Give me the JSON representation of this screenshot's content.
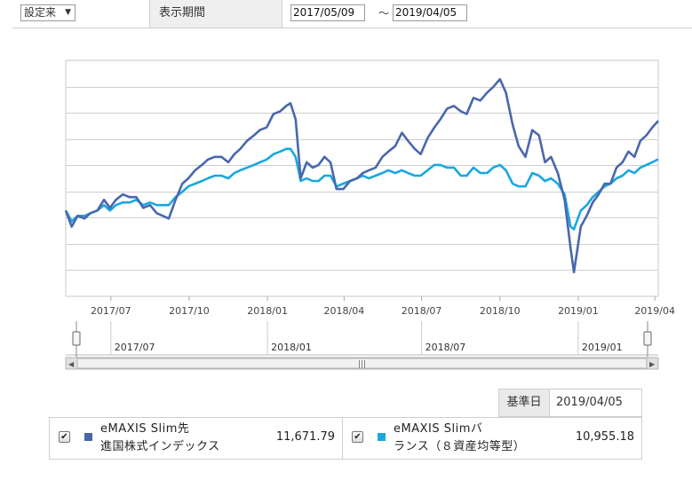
{
  "controls": {
    "period_select": "設定来",
    "period_label": "表示期間",
    "date_from": "2017/05/09",
    "tilde": "～",
    "date_to": "2019/04/05"
  },
  "chart_data": {
    "type": "line",
    "x_start": "2017/05/09",
    "x_end": "2019/04/05",
    "ylim": [
      8400,
      12800
    ],
    "grid": true,
    "x_tick_labels": [
      "2017/07",
      "2017/10",
      "2018/01",
      "2018/04",
      "2018/07",
      "2018/10",
      "2019/01",
      "2019/04"
    ],
    "series": [
      {
        "name": "eMAXIS Slim先進国株式インデックス",
        "color": "#4a67ad",
        "points": [
          [
            "2017-05-09",
            10000
          ],
          [
            "2017-05-16",
            9700
          ],
          [
            "2017-05-23",
            9900
          ],
          [
            "2017-05-31",
            9850
          ],
          [
            "2017-06-07",
            9950
          ],
          [
            "2017-06-15",
            10000
          ],
          [
            "2017-06-23",
            10200
          ],
          [
            "2017-06-30",
            10050
          ],
          [
            "2017-07-07",
            10200
          ],
          [
            "2017-07-15",
            10300
          ],
          [
            "2017-07-23",
            10250
          ],
          [
            "2017-07-31",
            10250
          ],
          [
            "2017-08-08",
            10050
          ],
          [
            "2017-08-16",
            10100
          ],
          [
            "2017-08-24",
            9950
          ],
          [
            "2017-08-31",
            9900
          ],
          [
            "2017-09-07",
            9850
          ],
          [
            "2017-09-15",
            10200
          ],
          [
            "2017-09-23",
            10500
          ],
          [
            "2017-09-30",
            10600
          ],
          [
            "2017-10-08",
            10750
          ],
          [
            "2017-10-16",
            10850
          ],
          [
            "2017-10-23",
            10950
          ],
          [
            "2017-10-31",
            11000
          ],
          [
            "2017-11-08",
            11000
          ],
          [
            "2017-11-16",
            10900
          ],
          [
            "2017-11-23",
            11050
          ],
          [
            "2017-11-30",
            11150
          ],
          [
            "2017-12-08",
            11300
          ],
          [
            "2017-12-16",
            11400
          ],
          [
            "2017-12-23",
            11500
          ],
          [
            "2017-12-31",
            11550
          ],
          [
            "2018-01-08",
            11800
          ],
          [
            "2018-01-16",
            11850
          ],
          [
            "2018-01-23",
            11950
          ],
          [
            "2018-01-28",
            12000
          ],
          [
            "2018-02-03",
            11700
          ],
          [
            "2018-02-09",
            10600
          ],
          [
            "2018-02-16",
            10900
          ],
          [
            "2018-02-23",
            10800
          ],
          [
            "2018-03-02",
            10850
          ],
          [
            "2018-03-09",
            11000
          ],
          [
            "2018-03-16",
            10900
          ],
          [
            "2018-03-23",
            10400
          ],
          [
            "2018-03-31",
            10400
          ],
          [
            "2018-04-08",
            10550
          ],
          [
            "2018-04-16",
            10600
          ],
          [
            "2018-04-23",
            10700
          ],
          [
            "2018-04-30",
            10750
          ],
          [
            "2018-05-08",
            10800
          ],
          [
            "2018-05-16",
            11000
          ],
          [
            "2018-05-23",
            11100
          ],
          [
            "2018-05-31",
            11200
          ],
          [
            "2018-06-08",
            11450
          ],
          [
            "2018-06-15",
            11300
          ],
          [
            "2018-06-23",
            11150
          ],
          [
            "2018-06-30",
            11050
          ],
          [
            "2018-07-08",
            11350
          ],
          [
            "2018-07-16",
            11550
          ],
          [
            "2018-07-23",
            11700
          ],
          [
            "2018-07-31",
            11900
          ],
          [
            "2018-08-08",
            11950
          ],
          [
            "2018-08-16",
            11850
          ],
          [
            "2018-08-23",
            11800
          ],
          [
            "2018-08-31",
            12100
          ],
          [
            "2018-09-08",
            12050
          ],
          [
            "2018-09-16",
            12200
          ],
          [
            "2018-09-23",
            12300
          ],
          [
            "2018-10-01",
            12450
          ],
          [
            "2018-10-08",
            12200
          ],
          [
            "2018-10-16",
            11600
          ],
          [
            "2018-10-23",
            11200
          ],
          [
            "2018-10-31",
            11000
          ],
          [
            "2018-11-08",
            11500
          ],
          [
            "2018-11-16",
            11400
          ],
          [
            "2018-11-23",
            10900
          ],
          [
            "2018-11-30",
            11000
          ],
          [
            "2018-12-08",
            10700
          ],
          [
            "2018-12-16",
            10200
          ],
          [
            "2018-12-23",
            9300
          ],
          [
            "2018-12-27",
            8850
          ],
          [
            "2019-01-04",
            9700
          ],
          [
            "2019-01-11",
            9900
          ],
          [
            "2019-01-18",
            10150
          ],
          [
            "2019-01-25",
            10300
          ],
          [
            "2019-02-01",
            10500
          ],
          [
            "2019-02-08",
            10500
          ],
          [
            "2019-02-15",
            10800
          ],
          [
            "2019-02-22",
            10900
          ],
          [
            "2019-03-01",
            11100
          ],
          [
            "2019-03-08",
            11000
          ],
          [
            "2019-03-15",
            11300
          ],
          [
            "2019-03-22",
            11400
          ],
          [
            "2019-03-29",
            11550
          ],
          [
            "2019-04-05",
            11671.79
          ]
        ]
      },
      {
        "name": "eMAXIS Slimバランス（８資産均等型）",
        "color": "#19a7e0",
        "points": [
          [
            "2017-05-09",
            10000
          ],
          [
            "2017-05-16",
            9800
          ],
          [
            "2017-05-23",
            9900
          ],
          [
            "2017-05-31",
            9900
          ],
          [
            "2017-06-07",
            9950
          ],
          [
            "2017-06-15",
            10000
          ],
          [
            "2017-06-23",
            10100
          ],
          [
            "2017-06-30",
            10000
          ],
          [
            "2017-07-07",
            10100
          ],
          [
            "2017-07-15",
            10150
          ],
          [
            "2017-07-23",
            10150
          ],
          [
            "2017-07-31",
            10200
          ],
          [
            "2017-08-08",
            10100
          ],
          [
            "2017-08-16",
            10150
          ],
          [
            "2017-08-24",
            10100
          ],
          [
            "2017-08-31",
            10100
          ],
          [
            "2017-09-07",
            10100
          ],
          [
            "2017-09-15",
            10250
          ],
          [
            "2017-09-23",
            10350
          ],
          [
            "2017-09-30",
            10450
          ],
          [
            "2017-10-08",
            10500
          ],
          [
            "2017-10-16",
            10550
          ],
          [
            "2017-10-23",
            10600
          ],
          [
            "2017-10-31",
            10650
          ],
          [
            "2017-11-08",
            10650
          ],
          [
            "2017-11-16",
            10600
          ],
          [
            "2017-11-23",
            10700
          ],
          [
            "2017-11-30",
            10750
          ],
          [
            "2017-12-08",
            10800
          ],
          [
            "2017-12-16",
            10850
          ],
          [
            "2017-12-23",
            10900
          ],
          [
            "2017-12-31",
            10950
          ],
          [
            "2018-01-08",
            11050
          ],
          [
            "2018-01-16",
            11100
          ],
          [
            "2018-01-23",
            11150
          ],
          [
            "2018-01-28",
            11150
          ],
          [
            "2018-02-03",
            11000
          ],
          [
            "2018-02-09",
            10550
          ],
          [
            "2018-02-16",
            10600
          ],
          [
            "2018-02-23",
            10550
          ],
          [
            "2018-03-02",
            10550
          ],
          [
            "2018-03-09",
            10650
          ],
          [
            "2018-03-16",
            10650
          ],
          [
            "2018-03-23",
            10450
          ],
          [
            "2018-03-31",
            10500
          ],
          [
            "2018-04-08",
            10550
          ],
          [
            "2018-04-16",
            10600
          ],
          [
            "2018-04-23",
            10650
          ],
          [
            "2018-04-30",
            10600
          ],
          [
            "2018-05-08",
            10650
          ],
          [
            "2018-05-16",
            10700
          ],
          [
            "2018-05-23",
            10750
          ],
          [
            "2018-05-31",
            10700
          ],
          [
            "2018-06-08",
            10750
          ],
          [
            "2018-06-15",
            10700
          ],
          [
            "2018-06-23",
            10650
          ],
          [
            "2018-06-30",
            10650
          ],
          [
            "2018-07-08",
            10750
          ],
          [
            "2018-07-16",
            10850
          ],
          [
            "2018-07-23",
            10850
          ],
          [
            "2018-07-31",
            10800
          ],
          [
            "2018-08-08",
            10800
          ],
          [
            "2018-08-16",
            10650
          ],
          [
            "2018-08-23",
            10650
          ],
          [
            "2018-08-31",
            10800
          ],
          [
            "2018-09-08",
            10700
          ],
          [
            "2018-09-16",
            10700
          ],
          [
            "2018-09-23",
            10800
          ],
          [
            "2018-10-01",
            10850
          ],
          [
            "2018-10-08",
            10750
          ],
          [
            "2018-10-16",
            10500
          ],
          [
            "2018-10-23",
            10450
          ],
          [
            "2018-10-31",
            10450
          ],
          [
            "2018-11-08",
            10700
          ],
          [
            "2018-11-16",
            10650
          ],
          [
            "2018-11-23",
            10550
          ],
          [
            "2018-11-30",
            10600
          ],
          [
            "2018-12-08",
            10500
          ],
          [
            "2018-12-16",
            10300
          ],
          [
            "2018-12-23",
            9700
          ],
          [
            "2018-12-27",
            9650
          ],
          [
            "2019-01-04",
            10000
          ],
          [
            "2019-01-11",
            10100
          ],
          [
            "2019-01-18",
            10250
          ],
          [
            "2019-01-25",
            10350
          ],
          [
            "2019-02-01",
            10450
          ],
          [
            "2019-02-08",
            10500
          ],
          [
            "2019-02-15",
            10600
          ],
          [
            "2019-02-22",
            10650
          ],
          [
            "2019-03-01",
            10750
          ],
          [
            "2019-03-08",
            10700
          ],
          [
            "2019-03-15",
            10800
          ],
          [
            "2019-03-22",
            10850
          ],
          [
            "2019-03-29",
            10900
          ],
          [
            "2019-04-05",
            10955.18
          ]
        ]
      }
    ]
  },
  "navigator": {
    "labels": [
      "2017/07",
      "2018/01",
      "2018/07",
      "2019/01"
    ],
    "scroll_grip": "|||",
    "left_arrow": "◀",
    "right_arrow": "▶"
  },
  "legend": {
    "base_date_label": "基準日",
    "base_date_value": "2019/04/05",
    "checkmark": "✔",
    "items": [
      {
        "line1": "eMAXIS Slim先",
        "line2": "進国株式インデックス",
        "value": "11,671.79",
        "color": "#4a67ad"
      },
      {
        "line1": "eMAXIS Slimバ",
        "line2": "ランス（８資産均等型）",
        "value": "10,955.18",
        "color": "#19a7e0"
      }
    ]
  }
}
